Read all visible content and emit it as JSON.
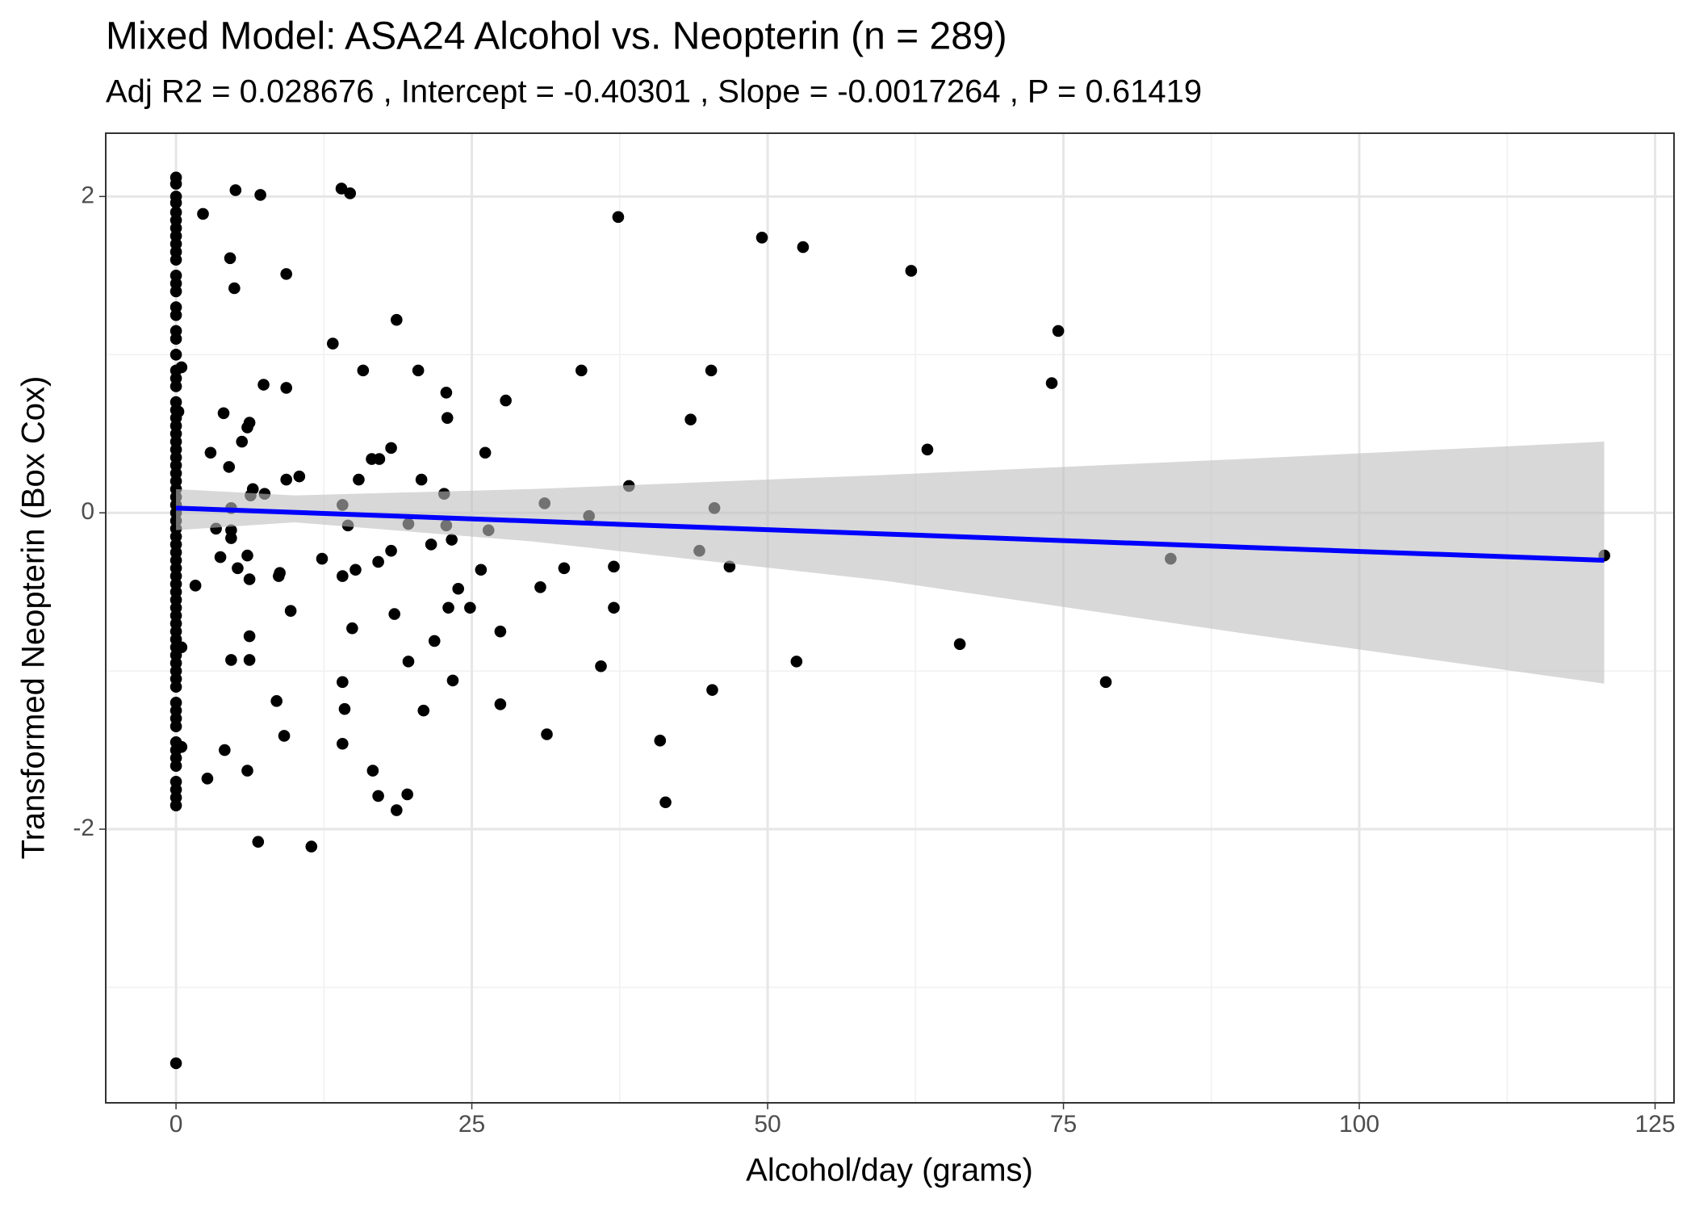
{
  "chart_data": {
    "type": "scatter",
    "title": "Mixed Model: ASA24 Alcohol vs. Neopterin (n = 289)",
    "subtitle": "Adj R2 =  0.028676 , Intercept =  -0.40301 , Slope =  -0.0017264 , P =  0.61419",
    "x_label": "Alcohol/day (grams)",
    "y_label": "Transformed Neopterin (Box Cox)",
    "xlim": [
      -5.94,
      126.6
    ],
    "ylim": [
      -3.73,
      2.4
    ],
    "xticks": [
      0,
      25,
      50,
      75,
      100,
      125
    ],
    "yticks": [
      -2,
      0,
      2
    ],
    "xminor": [
      12.5,
      37.5,
      62.5,
      87.5,
      112.5
    ],
    "yminor": [
      -3,
      -1,
      1
    ],
    "grid": true,
    "color": "#000000",
    "x": [
      0,
      0,
      0,
      0,
      0,
      0,
      0,
      0,
      0,
      0,
      0,
      0,
      0,
      0,
      0,
      0,
      0,
      0,
      0,
      0,
      0,
      0,
      0,
      0,
      0,
      0,
      0,
      0,
      0,
      0,
      0,
      0,
      0,
      0,
      0,
      0,
      0,
      0,
      0,
      0,
      0,
      0,
      0,
      0,
      0,
      0,
      0,
      0,
      0,
      0,
      0,
      0,
      0,
      0,
      0,
      0,
      0,
      0,
      0,
      0,
      0,
      0,
      0,
      0,
      0,
      0,
      0,
      0,
      0,
      0,
      0,
      0,
      0.46,
      0.2,
      0.46,
      0.46,
      1.64,
      2.28,
      2.65,
      2.92,
      3.38,
      3.75,
      4.02,
      4.11,
      4.57,
      4.48,
      4.66,
      4.66,
      4.66,
      4.66,
      5.03,
      4.93,
      5.21,
      5.57,
      6.03,
      6.21,
      6.03,
      6.03,
      6.21,
      6.21,
      6.21,
      6.3,
      6.49,
      6.94,
      7.13,
      7.4,
      7.49,
      8.5,
      8.68,
      8.77,
      9.14,
      9.32,
      9.32,
      9.32,
      9.69,
      10.42,
      11.44,
      12.34,
      13.25,
      13.98,
      14.07,
      14.07,
      14.07,
      14.07,
      14.25,
      14.53,
      14.71,
      14.89,
      15.17,
      15.44,
      15.81,
      16.54,
      16.63,
      17.09,
      17.09,
      17.18,
      18.18,
      18.18,
      18.46,
      18.64,
      18.64,
      19.55,
      19.64,
      19.64,
      20.47,
      20.74,
      20.92,
      21.56,
      21.84,
      22.66,
      22.84,
      22.84,
      22.93,
      23.02,
      23.3,
      23.39,
      23.85,
      24.85,
      25.77,
      26.13,
      26.41,
      27.41,
      27.41,
      27.87,
      30.79,
      31.15,
      31.34,
      32.8,
      34.26,
      34.9,
      35.91,
      37.0,
      37.0,
      37.37,
      38.28,
      40.91,
      41.37,
      43.49,
      44.23,
      45.23,
      45.32,
      45.5,
      46.78,
      49.52,
      52.44,
      52.99,
      62.13,
      63.5,
      66.24,
      74.01,
      74.56,
      78.58,
      84.06,
      120.71
    ],
    "y": [
      2.12,
      2.08,
      2.0,
      1.96,
      1.9,
      1.85,
      1.8,
      1.75,
      1.7,
      1.65,
      1.6,
      1.5,
      1.45,
      1.4,
      1.3,
      1.25,
      1.15,
      1.1,
      1.0,
      0.9,
      0.85,
      0.8,
      0.7,
      0.65,
      0.6,
      0.55,
      0.5,
      0.45,
      0.4,
      0.35,
      0.3,
      0.25,
      0.2,
      0.15,
      0.1,
      0.05,
      0,
      -0.05,
      -0.1,
      -0.15,
      -0.2,
      -0.25,
      -0.3,
      -0.35,
      -0.4,
      -0.45,
      -0.5,
      -0.55,
      -0.6,
      -0.65,
      -0.7,
      -0.75,
      -0.8,
      -0.85,
      -0.9,
      -0.95,
      -1.0,
      -1.05,
      -1.1,
      -1.2,
      -1.25,
      -1.3,
      -1.35,
      -1.45,
      -1.5,
      -1.55,
      -1.6,
      -1.7,
      -1.75,
      -1.8,
      -1.85,
      -3.48,
      0.92,
      0.64,
      -0.85,
      -1.48,
      -0.46,
      1.89,
      -1.68,
      0.38,
      -0.1,
      -0.28,
      0.63,
      -1.5,
      1.61,
      0.29,
      0.03,
      -0.11,
      -0.16,
      -0.93,
      2.04,
      1.42,
      -0.35,
      0.45,
      0.54,
      0.57,
      -0.27,
      -1.63,
      -0.42,
      -0.78,
      -0.93,
      0.11,
      0.15,
      -2.08,
      2.01,
      0.81,
      0.12,
      -1.19,
      -0.4,
      -0.38,
      -1.41,
      1.51,
      0.79,
      0.21,
      -0.62,
      0.23,
      -2.11,
      -0.29,
      1.07,
      2.05,
      0.05,
      -0.4,
      -1.07,
      -1.46,
      -1.24,
      -0.08,
      2.02,
      -0.73,
      -0.36,
      0.21,
      0.9,
      0.34,
      -1.63,
      -1.79,
      -0.31,
      0.34,
      0.41,
      -0.24,
      -0.64,
      1.22,
      -1.88,
      -1.78,
      -0.07,
      -0.94,
      0.9,
      0.21,
      -1.25,
      -0.2,
      -0.81,
      0.12,
      -0.08,
      0.76,
      0.6,
      -0.6,
      -0.17,
      -1.06,
      -0.48,
      -0.6,
      -0.36,
      0.38,
      -0.11,
      -0.75,
      -1.21,
      0.71,
      -0.47,
      0.06,
      -1.4,
      -0.35,
      0.9,
      -0.02,
      -0.97,
      -0.34,
      -0.6,
      1.87,
      0.17,
      -1.44,
      -1.83,
      0.59,
      -0.24,
      0.9,
      -1.12,
      0.03,
      -0.34,
      1.74,
      -0.94,
      1.68,
      1.53,
      0.4,
      -0.83,
      0.82,
      1.15,
      -1.07,
      -0.29,
      -0.27
    ],
    "fit": {
      "color": "#0000ff",
      "band_color": "#bebebe",
      "x": [
        0,
        10,
        30,
        60,
        90,
        120.7
      ],
      "y": [
        0.03,
        0.003,
        -0.052,
        -0.134,
        -0.217,
        -0.3
      ],
      "lower": [
        -0.11,
        -0.06,
        -0.18,
        -0.43,
        -0.76,
        -1.08
      ],
      "upper": [
        0.15,
        0.11,
        0.15,
        0.24,
        0.34,
        0.45
      ]
    }
  }
}
